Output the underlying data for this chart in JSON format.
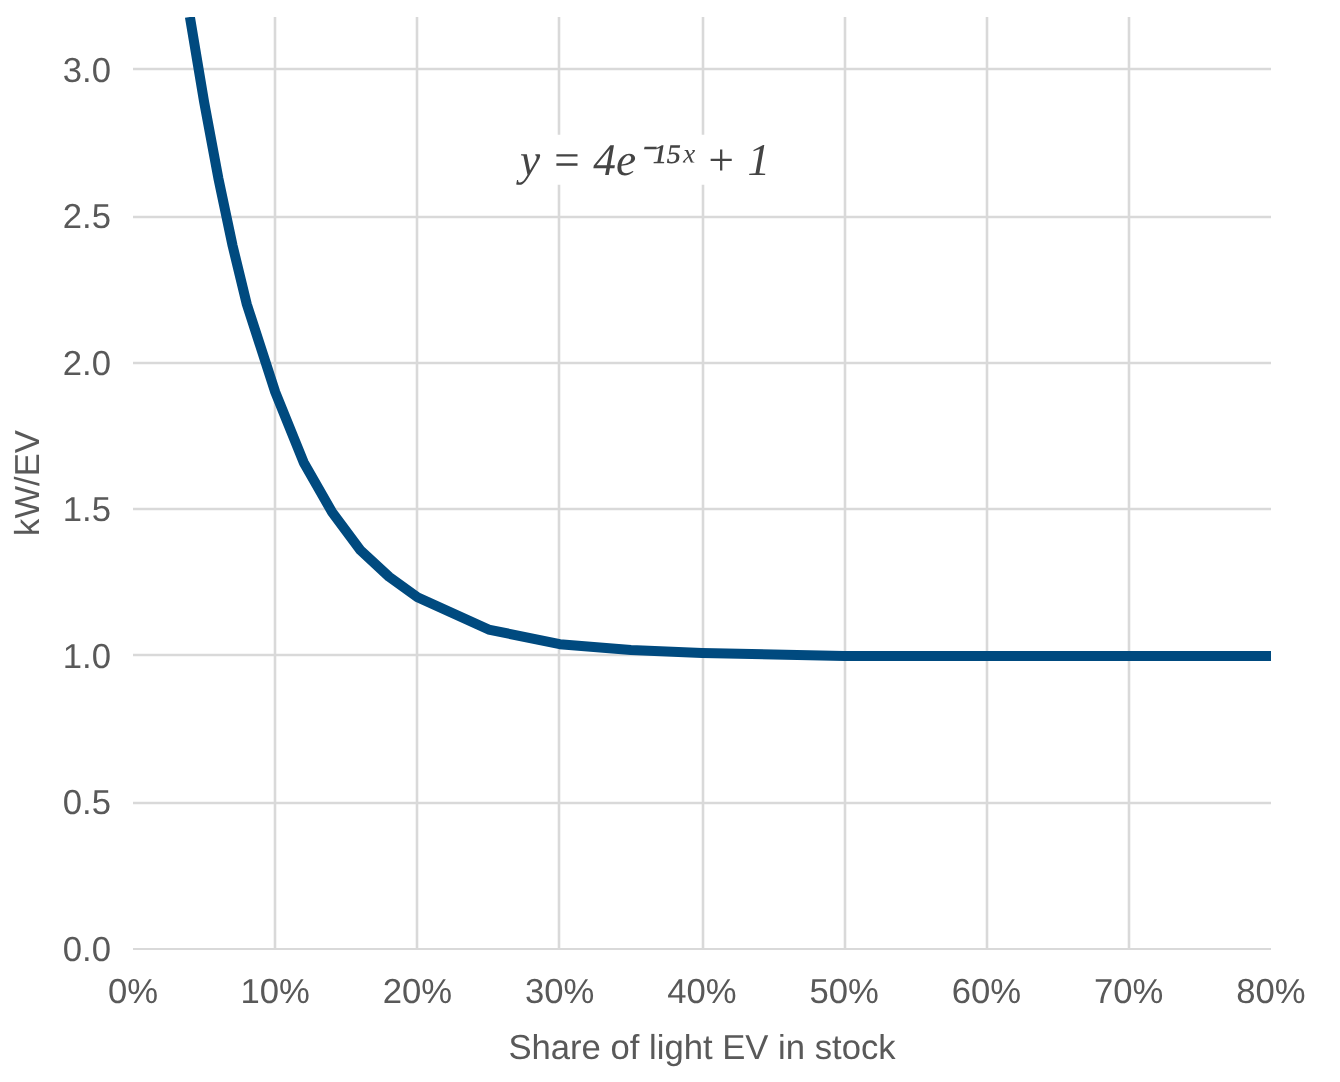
{
  "chart_data": {
    "type": "line",
    "xlabel": "Share of light EV in stock",
    "ylabel": "kW/EV",
    "annotations": [
      "y = 4e⁻¹⁵ˣ + 1"
    ],
    "x": [
      4,
      5,
      6,
      7,
      8,
      10,
      12,
      14,
      16,
      18,
      20,
      25,
      30,
      35,
      40,
      50,
      60,
      70,
      80
    ],
    "series": [
      {
        "color": "#004a7f",
        "values": [
          3.18,
          2.89,
          2.63,
          2.4,
          2.2,
          1.9,
          1.66,
          1.49,
          1.36,
          1.27,
          1.2,
          1.09,
          1.04,
          1.02,
          1.01,
          1.0,
          1.0,
          1.0,
          1.0
        ]
      }
    ],
    "xlim": [
      0,
      80
    ],
    "ylim": [
      0,
      3.18
    ],
    "xticks": [
      {
        "value": 0,
        "label": "0%"
      },
      {
        "value": 10,
        "label": "10%"
      },
      {
        "value": 20,
        "label": "20%"
      },
      {
        "value": 30,
        "label": "30%"
      },
      {
        "value": 40,
        "label": "40%"
      },
      {
        "value": 50,
        "label": "50%"
      },
      {
        "value": 60,
        "label": "60%"
      },
      {
        "value": 70,
        "label": "70%"
      },
      {
        "value": 80,
        "label": "80%"
      }
    ],
    "yticks": [
      {
        "value": 0,
        "label": "0.0"
      },
      {
        "value": 0.5,
        "label": "0.5"
      },
      {
        "value": 1,
        "label": "1.0"
      },
      {
        "value": 1.5,
        "label": "1.5"
      },
      {
        "value": 2,
        "label": "2.0"
      },
      {
        "value": 2.5,
        "label": "2.5"
      },
      {
        "value": 3,
        "label": "3.0"
      }
    ],
    "grid": true,
    "marker": "none",
    "line_style": "solid"
  }
}
